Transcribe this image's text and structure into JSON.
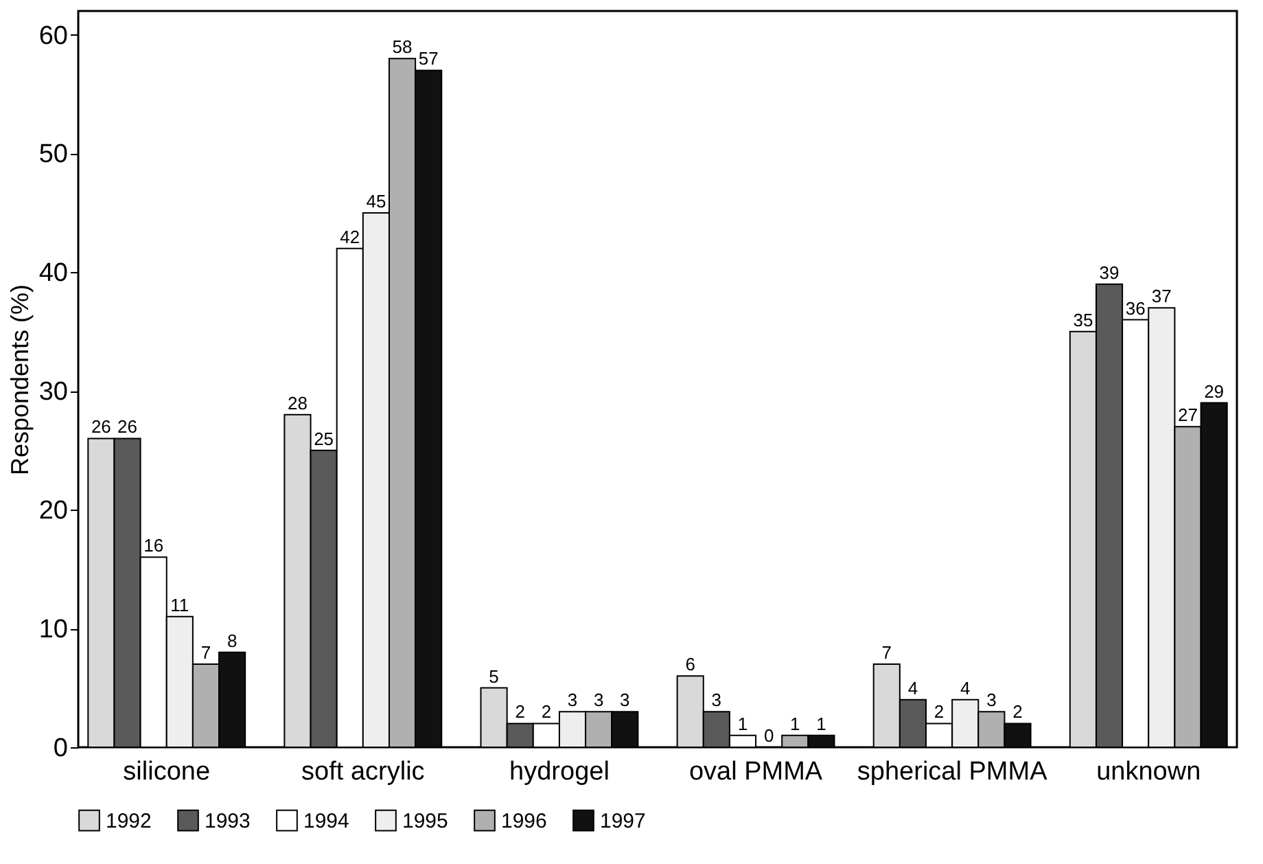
{
  "chart_data": {
    "type": "bar",
    "ylabel": "Respondents (%)",
    "categories": [
      "silicone",
      "soft acrylic",
      "hydrogel",
      "oval PMMA",
      "spherical PMMA",
      "unknown"
    ],
    "series": [
      {
        "name": "1992",
        "color": "#d9d9d9",
        "values": [
          26,
          28,
          5,
          6,
          7,
          35
        ]
      },
      {
        "name": "1993",
        "color": "#5a5a5a",
        "values": [
          26,
          25,
          2,
          3,
          4,
          39
        ]
      },
      {
        "name": "1994",
        "color": "#ffffff",
        "values": [
          16,
          42,
          2,
          1,
          2,
          36
        ]
      },
      {
        "name": "1995",
        "color": "#eeeeee",
        "values": [
          11,
          45,
          3,
          0,
          4,
          37
        ]
      },
      {
        "name": "1996",
        "color": "#b0b0b0",
        "values": [
          7,
          58,
          3,
          1,
          3,
          27
        ]
      },
      {
        "name": "1997",
        "color": "#111111",
        "values": [
          8,
          57,
          3,
          1,
          2,
          29
        ]
      }
    ],
    "ylim": [
      0,
      62
    ],
    "yticks": [
      0,
      10,
      20,
      30,
      40,
      50,
      60
    ],
    "grid": false,
    "legend": "bottom",
    "data_labels": true
  }
}
